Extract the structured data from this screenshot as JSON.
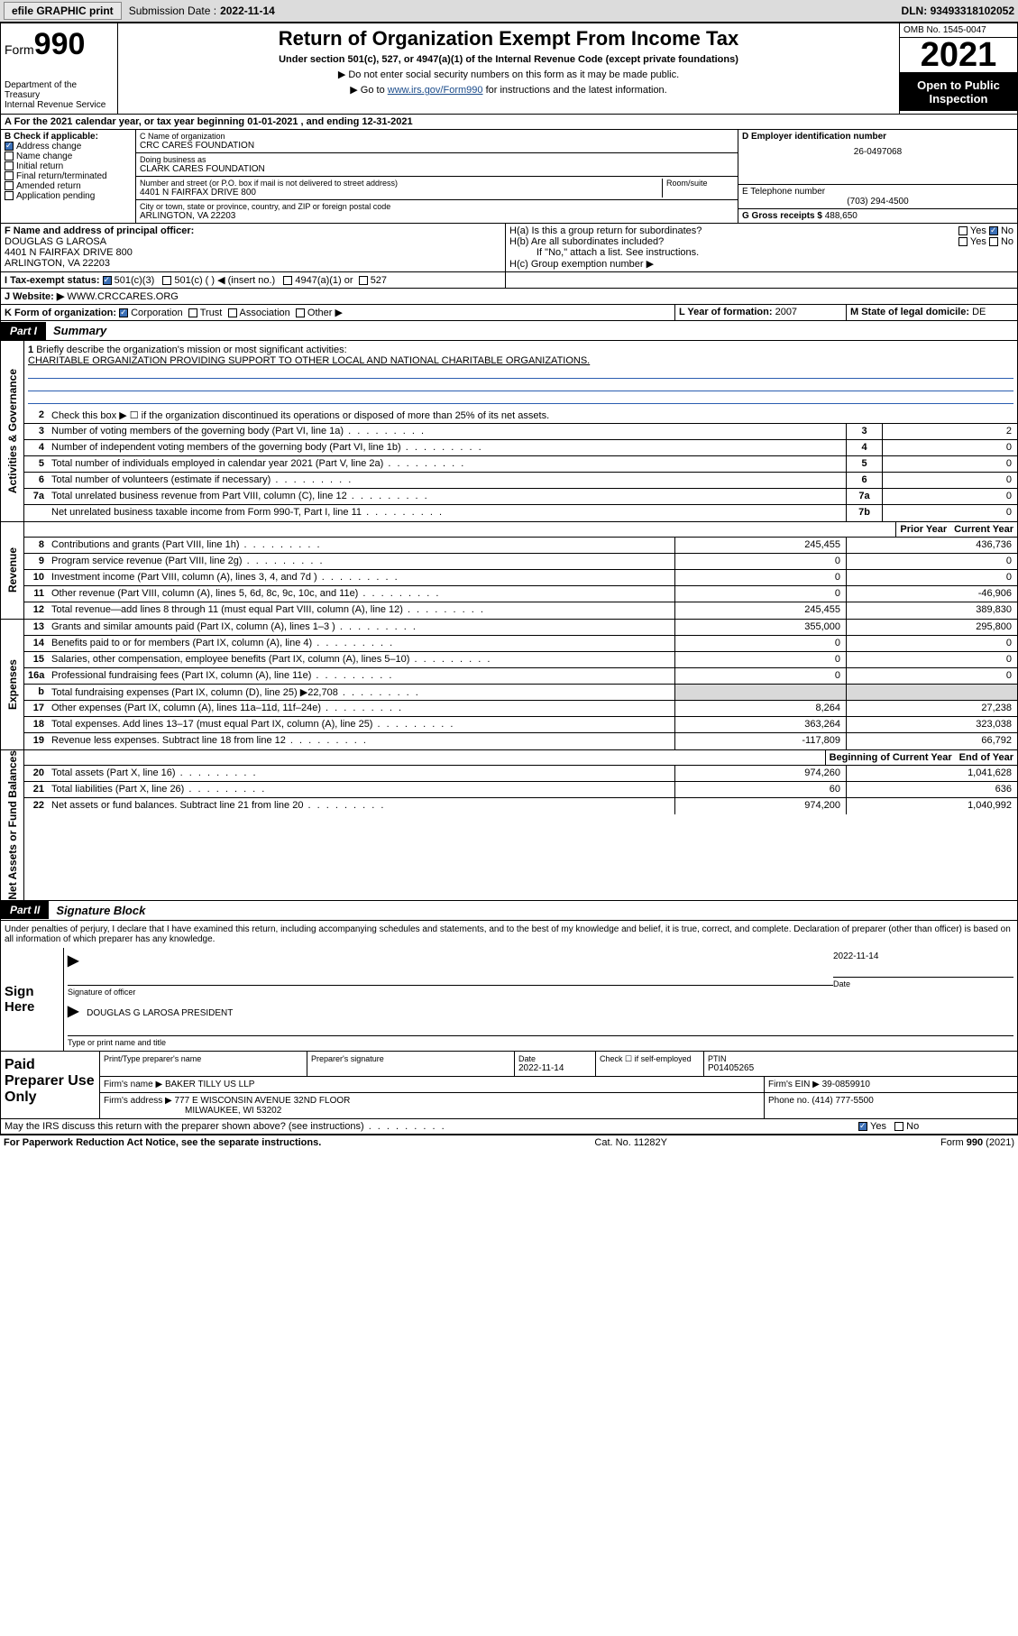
{
  "topbar": {
    "efile_label": "efile GRAPHIC print",
    "submission_label": "Submission Date :",
    "submission_date": "2022-11-14",
    "dln_label": "DLN:",
    "dln": "93493318102052"
  },
  "header": {
    "form_prefix": "Form",
    "form_number": "990",
    "title": "Return of Organization Exempt From Income Tax",
    "subtitle": "Under section 501(c), 527, or 4947(a)(1) of the Internal Revenue Code (except private foundations)",
    "note1": "▶ Do not enter social security numbers on this form as it may be made public.",
    "note2_pre": "▶ Go to ",
    "note2_link": "www.irs.gov/Form990",
    "note2_post": " for instructions and the latest information.",
    "dept": "Department of the Treasury\nInternal Revenue Service",
    "omb": "OMB No. 1545-0047",
    "year": "2021",
    "open_pub": "Open to Public Inspection"
  },
  "line_a": "For the 2021 calendar year, or tax year beginning 01-01-2021   , and ending 12-31-2021",
  "section_b": {
    "hdr": "B Check if applicable:",
    "address_change": "Address change",
    "name_change": "Name change",
    "initial_return": "Initial return",
    "final_return": "Final return/terminated",
    "amended_return": "Amended return",
    "application_pending": "Application pending"
  },
  "section_c": {
    "name_label": "C Name of organization",
    "name": "CRC CARES FOUNDATION",
    "dba_label": "Doing business as",
    "dba": "CLARK CARES FOUNDATION",
    "addr_label": "Number and street (or P.O. box if mail is not delivered to street address)",
    "room_label": "Room/suite",
    "addr": "4401 N FAIRFAX DRIVE 800",
    "city_label": "City or town, state or province, country, and ZIP or foreign postal code",
    "city": "ARLINGTON, VA  22203"
  },
  "section_d": {
    "label": "D Employer identification number",
    "value": "26-0497068"
  },
  "section_e": {
    "label": "E Telephone number",
    "value": "(703) 294-4500"
  },
  "section_g": {
    "label": "G Gross receipts $",
    "value": "488,650"
  },
  "section_f": {
    "label": "F Name and address of principal officer:",
    "name": "DOUGLAS G LAROSA",
    "addr1": "4401 N FAIRFAX DRIVE 800",
    "addr2": "ARLINGTON, VA  22203"
  },
  "section_h": {
    "ha": "H(a)  Is this a group return for subordinates?",
    "ha_yes": "Yes",
    "ha_no": "No",
    "hb": "H(b)  Are all subordinates included?",
    "hb_yes": "Yes",
    "hb_no": "No",
    "hb_note": "If \"No,\" attach a list. See instructions.",
    "hc": "H(c)  Group exemption number ▶"
  },
  "section_i": {
    "label": "I   Tax-exempt status:",
    "o1": "501(c)(3)",
    "o2": "501(c) (  ) ◀ (insert no.)",
    "o3": "4947(a)(1) or",
    "o4": "527"
  },
  "section_j": {
    "label": "J   Website: ▶",
    "value": "WWW.CRCCARES.ORG"
  },
  "section_k": {
    "label": "K Form of organization:",
    "corp": "Corporation",
    "trust": "Trust",
    "assoc": "Association",
    "other": "Other ▶"
  },
  "section_l": {
    "label": "L Year of formation:",
    "value": "2007"
  },
  "section_m": {
    "label": "M State of legal domicile:",
    "value": "DE"
  },
  "part1": {
    "tab": "Part I",
    "title": "Summary"
  },
  "summary": {
    "line1_label": "Briefly describe the organization's mission or most significant activities:",
    "line1_text": "CHARITABLE ORGANIZATION PROVIDING SUPPORT TO OTHER LOCAL AND NATIONAL CHARITABLE ORGANIZATIONS.",
    "line2": "Check this box ▶ ☐  if the organization discontinued its operations or disposed of more than 25% of its net assets.",
    "line3": "Number of voting members of the governing body (Part VI, line 1a)",
    "line4": "Number of independent voting members of the governing body (Part VI, line 1b)",
    "line5": "Total number of individuals employed in calendar year 2021 (Part V, line 2a)",
    "line6": "Total number of volunteers (estimate if necessary)",
    "line7a": "Total unrelated business revenue from Part VIII, column (C), line 12",
    "line7b": "Net unrelated business taxable income from Form 990-T, Part I, line 11",
    "vals": {
      "3": "2",
      "4": "0",
      "5": "0",
      "6": "0",
      "7a": "0",
      "7b": "0"
    }
  },
  "revexp_hdr": {
    "prior": "Prior Year",
    "current": "Current Year"
  },
  "revenue": {
    "label": "Revenue",
    "lines": [
      {
        "n": "8",
        "d": "Contributions and grants (Part VIII, line 1h)",
        "p": "245,455",
        "c": "436,736"
      },
      {
        "n": "9",
        "d": "Program service revenue (Part VIII, line 2g)",
        "p": "0",
        "c": "0"
      },
      {
        "n": "10",
        "d": "Investment income (Part VIII, column (A), lines 3, 4, and 7d )",
        "p": "0",
        "c": "0"
      },
      {
        "n": "11",
        "d": "Other revenue (Part VIII, column (A), lines 5, 6d, 8c, 9c, 10c, and 11e)",
        "p": "0",
        "c": "-46,906"
      },
      {
        "n": "12",
        "d": "Total revenue—add lines 8 through 11 (must equal Part VIII, column (A), line 12)",
        "p": "245,455",
        "c": "389,830"
      }
    ]
  },
  "expenses": {
    "label": "Expenses",
    "lines": [
      {
        "n": "13",
        "d": "Grants and similar amounts paid (Part IX, column (A), lines 1–3 )",
        "p": "355,000",
        "c": "295,800"
      },
      {
        "n": "14",
        "d": "Benefits paid to or for members (Part IX, column (A), line 4)",
        "p": "0",
        "c": "0"
      },
      {
        "n": "15",
        "d": "Salaries, other compensation, employee benefits (Part IX, column (A), lines 5–10)",
        "p": "0",
        "c": "0"
      },
      {
        "n": "16a",
        "d": "Professional fundraising fees (Part IX, column (A), line 11e)",
        "p": "0",
        "c": "0"
      },
      {
        "n": "b",
        "d": "Total fundraising expenses (Part IX, column (D), line 25) ▶22,708",
        "p": "",
        "c": "",
        "shade": true
      },
      {
        "n": "17",
        "d": "Other expenses (Part IX, column (A), lines 11a–11d, 11f–24e)",
        "p": "8,264",
        "c": "27,238"
      },
      {
        "n": "18",
        "d": "Total expenses. Add lines 13–17 (must equal Part IX, column (A), line 25)",
        "p": "363,264",
        "c": "323,038"
      },
      {
        "n": "19",
        "d": "Revenue less expenses. Subtract line 18 from line 12",
        "p": "-117,809",
        "c": "66,792"
      }
    ]
  },
  "netassets_hdr": {
    "begin": "Beginning of Current Year",
    "end": "End of Year"
  },
  "netassets": {
    "label": "Net Assets or Fund Balances",
    "lines": [
      {
        "n": "20",
        "d": "Total assets (Part X, line 16)",
        "p": "974,260",
        "c": "1,041,628"
      },
      {
        "n": "21",
        "d": "Total liabilities (Part X, line 26)",
        "p": "60",
        "c": "636"
      },
      {
        "n": "22",
        "d": "Net assets or fund balances. Subtract line 21 from line 20",
        "p": "974,200",
        "c": "1,040,992"
      }
    ]
  },
  "activities_label": "Activities & Governance",
  "part2": {
    "tab": "Part II",
    "title": "Signature Block"
  },
  "penalties": "Under penalties of perjury, I declare that I have examined this return, including accompanying schedules and statements, and to the best of my knowledge and belief, it is true, correct, and complete. Declaration of preparer (other than officer) is based on all information of which preparer has any knowledge.",
  "sign": {
    "here": "Sign Here",
    "sig_officer": "Signature of officer",
    "date": "Date",
    "date_val": "2022-11-14",
    "name_title": "DOUGLAS G LAROSA  PRESIDENT",
    "name_title_label": "Type or print name and title"
  },
  "preparer": {
    "label": "Paid Preparer Use Only",
    "print_name_label": "Print/Type preparer's name",
    "sig_label": "Preparer's signature",
    "date_label": "Date",
    "date_val": "2022-11-14",
    "check_label": "Check ☐ if self-employed",
    "ptin_label": "PTIN",
    "ptin": "P01405265",
    "firm_name_label": "Firm's name   ▶",
    "firm_name": "BAKER TILLY US LLP",
    "firm_ein_label": "Firm's EIN ▶",
    "firm_ein": "39-0859910",
    "firm_addr_label": "Firm's address ▶",
    "firm_addr1": "777 E WISCONSIN AVENUE 32ND FLOOR",
    "firm_addr2": "MILWAUKEE, WI  53202",
    "phone_label": "Phone no.",
    "phone": "(414) 777-5500"
  },
  "discuss": {
    "q": "May the IRS discuss this return with the preparer shown above? (see instructions)",
    "yes": "Yes",
    "no": "No"
  },
  "footer": {
    "left": "For Paperwork Reduction Act Notice, see the separate instructions.",
    "mid": "Cat. No. 11282Y",
    "right": "Form 990 (2021)"
  },
  "colors": {
    "topbar_bg": "#dcdcdc",
    "check_blue": "#3b6fb6",
    "link": "#1a4b8a",
    "underline_blue": "#2a5db0",
    "shade": "#d9d9d9"
  }
}
